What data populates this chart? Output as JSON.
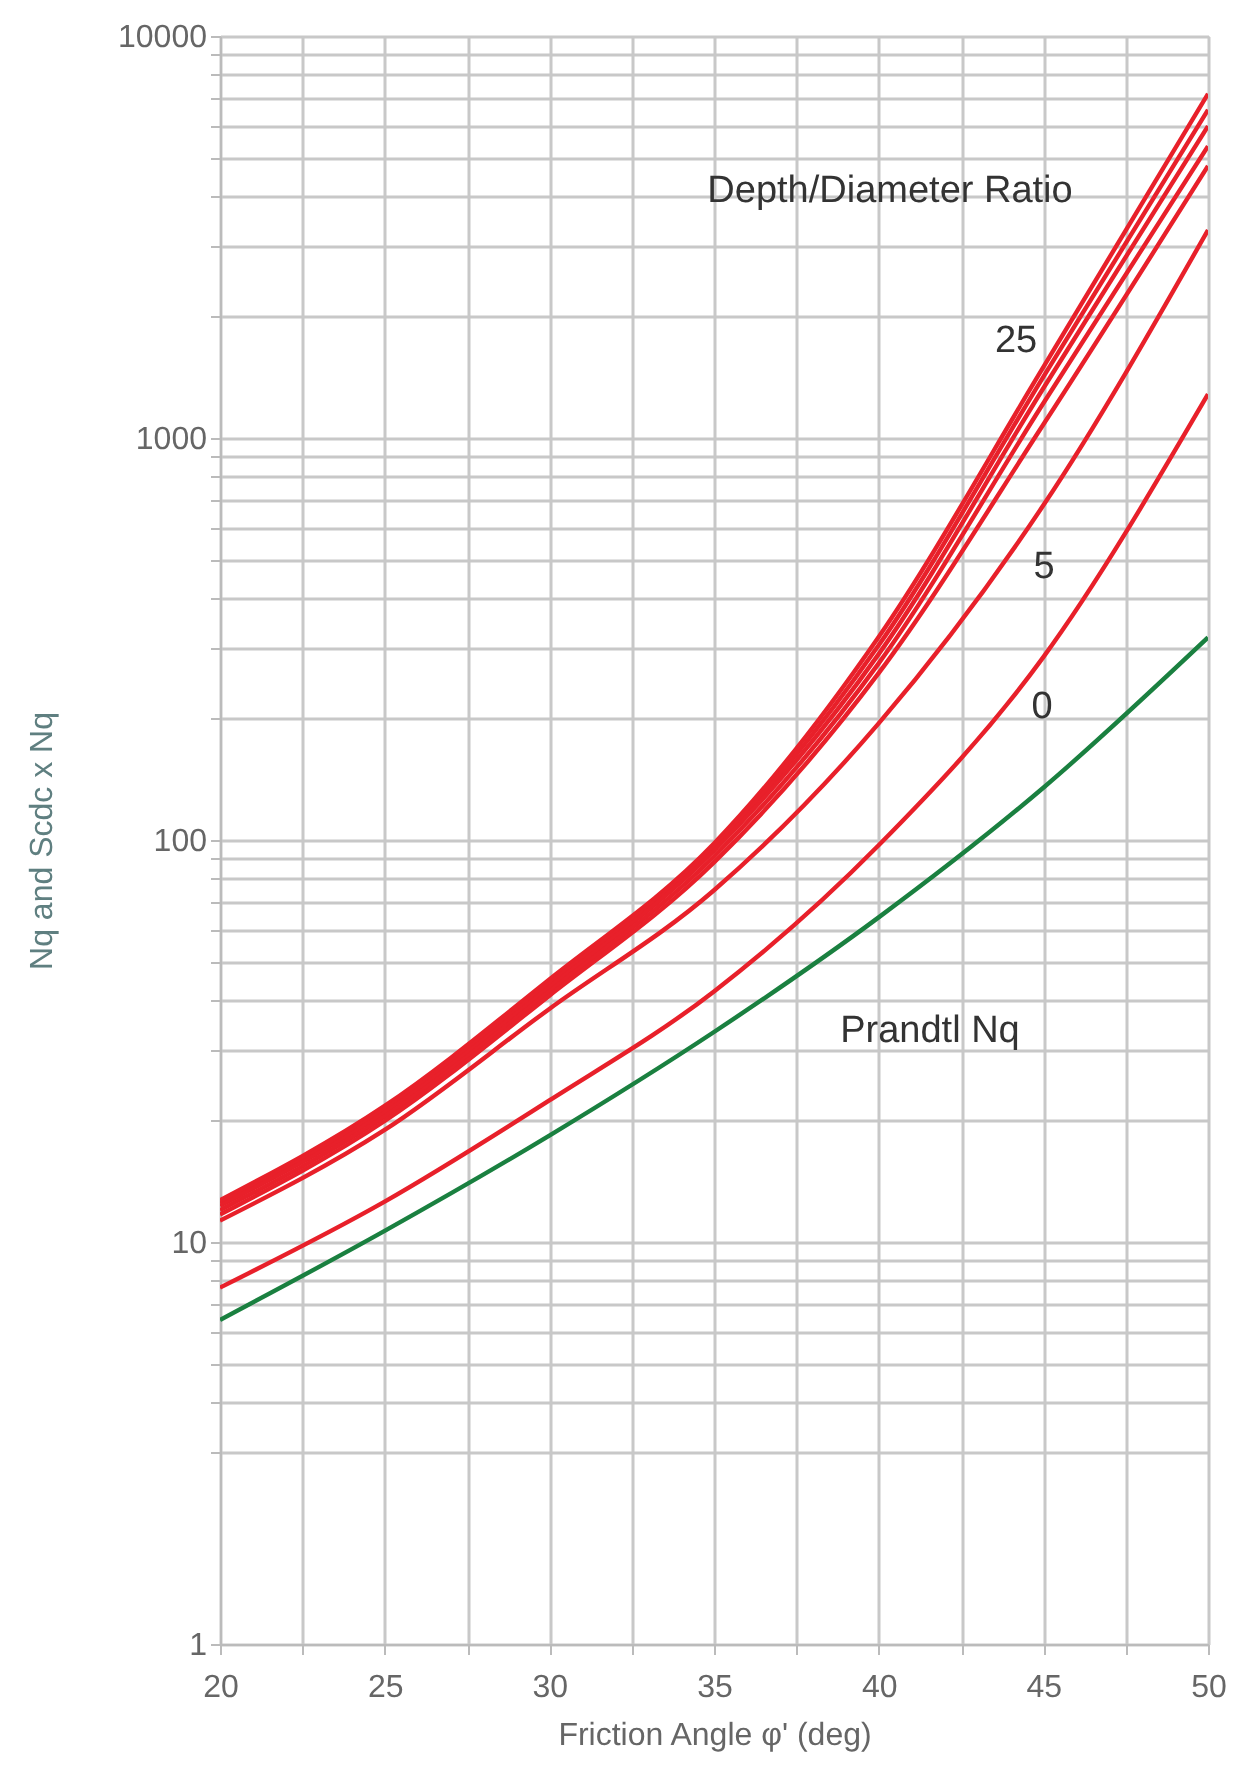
{
  "chart_data": {
    "type": "line",
    "xlabel": "Friction Angle φ' (deg)",
    "ylabel": "Nq and Scdc x Nq",
    "log": "y",
    "grid": true,
    "marker": "none",
    "line_style": "solid",
    "xlim": [
      20,
      50
    ],
    "ylim": [
      1,
      10000
    ],
    "xticks": [
      20,
      {
        "value": 22.5,
        "label": null
      },
      25,
      {
        "value": 27.5,
        "label": null
      },
      30,
      {
        "value": 32.5,
        "label": null
      },
      35,
      {
        "value": 37.5,
        "label": null
      },
      40,
      {
        "value": 42.5,
        "label": null
      },
      45,
      {
        "value": 47.5,
        "label": null
      },
      50
    ],
    "yticks": [
      1,
      {
        "value": 3,
        "label": null
      },
      {
        "value": 4,
        "label": null
      },
      {
        "value": 5,
        "label": null
      },
      {
        "value": 6,
        "label": null
      },
      {
        "value": 7,
        "label": null
      },
      {
        "value": 8,
        "label": null
      },
      {
        "value": 9,
        "label": null
      },
      10,
      {
        "value": 20,
        "label": null
      },
      {
        "value": 30,
        "label": null
      },
      {
        "value": 40,
        "label": null
      },
      {
        "value": 50,
        "label": null
      },
      {
        "value": 60,
        "label": null
      },
      {
        "value": 70,
        "label": null
      },
      {
        "value": 80,
        "label": null
      },
      {
        "value": 90,
        "label": null
      },
      100,
      {
        "value": 200,
        "label": null
      },
      {
        "value": 300,
        "label": null
      },
      {
        "value": 400,
        "label": null
      },
      {
        "value": 500,
        "label": null
      },
      {
        "value": 600,
        "label": null
      },
      {
        "value": 700,
        "label": null
      },
      {
        "value": 800,
        "label": null
      },
      {
        "value": 900,
        "label": null
      },
      1000,
      {
        "value": 2000,
        "label": null
      },
      {
        "value": 3000,
        "label": null
      },
      {
        "value": 4000,
        "label": null
      },
      {
        "value": 5000,
        "label": null
      },
      {
        "value": 6000,
        "label": null
      },
      {
        "value": 7000,
        "label": null
      },
      {
        "value": 8000,
        "label": null
      },
      {
        "value": 9000,
        "label": null
      },
      10000
    ],
    "x": [
      20,
      25,
      30,
      35,
      40,
      45,
      50
    ],
    "series": [
      {
        "color": "#e8202a",
        "values": [
          12.7,
          21.8,
          45,
          98,
          320,
          1500,
          7180
        ]
      },
      {
        "color": "#e8202a",
        "values": [
          12.5,
          21.4,
          44,
          96,
          305,
          1420,
          6550
        ]
      },
      {
        "color": "#e8202a",
        "values": [
          12.3,
          21.0,
          43,
          94,
          290,
          1330,
          5970
        ]
      },
      {
        "color": "#e8202a",
        "values": [
          12.0,
          20.5,
          42,
          91,
          275,
          1220,
          5320
        ]
      },
      {
        "color": "#e8202a",
        "values": [
          11.7,
          20.0,
          41,
          88,
          260,
          1080,
          4750
        ]
      },
      {
        "color": "#e8202a",
        "values": [
          11.3,
          19.0,
          38,
          75,
          195,
          680,
          3290
        ]
      },
      {
        "color": "#e8202a",
        "values": [
          7.7,
          12.6,
          22.5,
          42,
          97,
          285,
          1285
        ]
      },
      {
        "color": "#1a8040",
        "values": [
          6.4,
          10.66,
          18.4,
          33.3,
          64.2,
          134.9,
          319.1
        ]
      }
    ],
    "annotations": [
      "Depth/Diameter Ratio",
      "25",
      "5",
      "0",
      "Prandtl Nq"
    ]
  }
}
